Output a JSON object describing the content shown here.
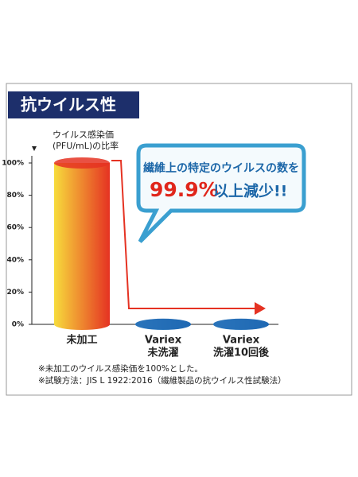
{
  "title": "抗ウイルス性",
  "chart_data": {
    "type": "bar",
    "ylabel": [
      "ウイルス感染価",
      "(PFU/mL)の比率"
    ],
    "categories": [
      [
        "未加工"
      ],
      [
        "Variex",
        "未洗濯"
      ],
      [
        "Variex",
        "洗濯10回後"
      ]
    ],
    "values": [
      100,
      0.1,
      0.1
    ],
    "colors": [
      [
        "#f7dc3c",
        "#e53222"
      ],
      [
        "#6fb4e6",
        "#1f68b3"
      ],
      [
        "#6fb4e6",
        "#1f68b3"
      ]
    ],
    "ylim": [
      0,
      100
    ],
    "yticks": [
      {
        "value": 0,
        "label": "0%"
      },
      {
        "value": 20,
        "label": "20%"
      },
      {
        "value": 40,
        "label": "40%"
      },
      {
        "value": 60,
        "label": "60%"
      },
      {
        "value": 80,
        "label": "80%"
      },
      {
        "value": 100,
        "label": "100%"
      }
    ],
    "callout": {
      "text": "繊維上の特定のウイルスの数を",
      "highlight": "99.9%",
      "emphasis": "以上減少!!"
    }
  },
  "notes": [
    "※未加工のウイルス感染価を100%とした。",
    "※試験方法：JIS L 1922:2016（繊維製品の抗ウイルス性試験法）"
  ]
}
